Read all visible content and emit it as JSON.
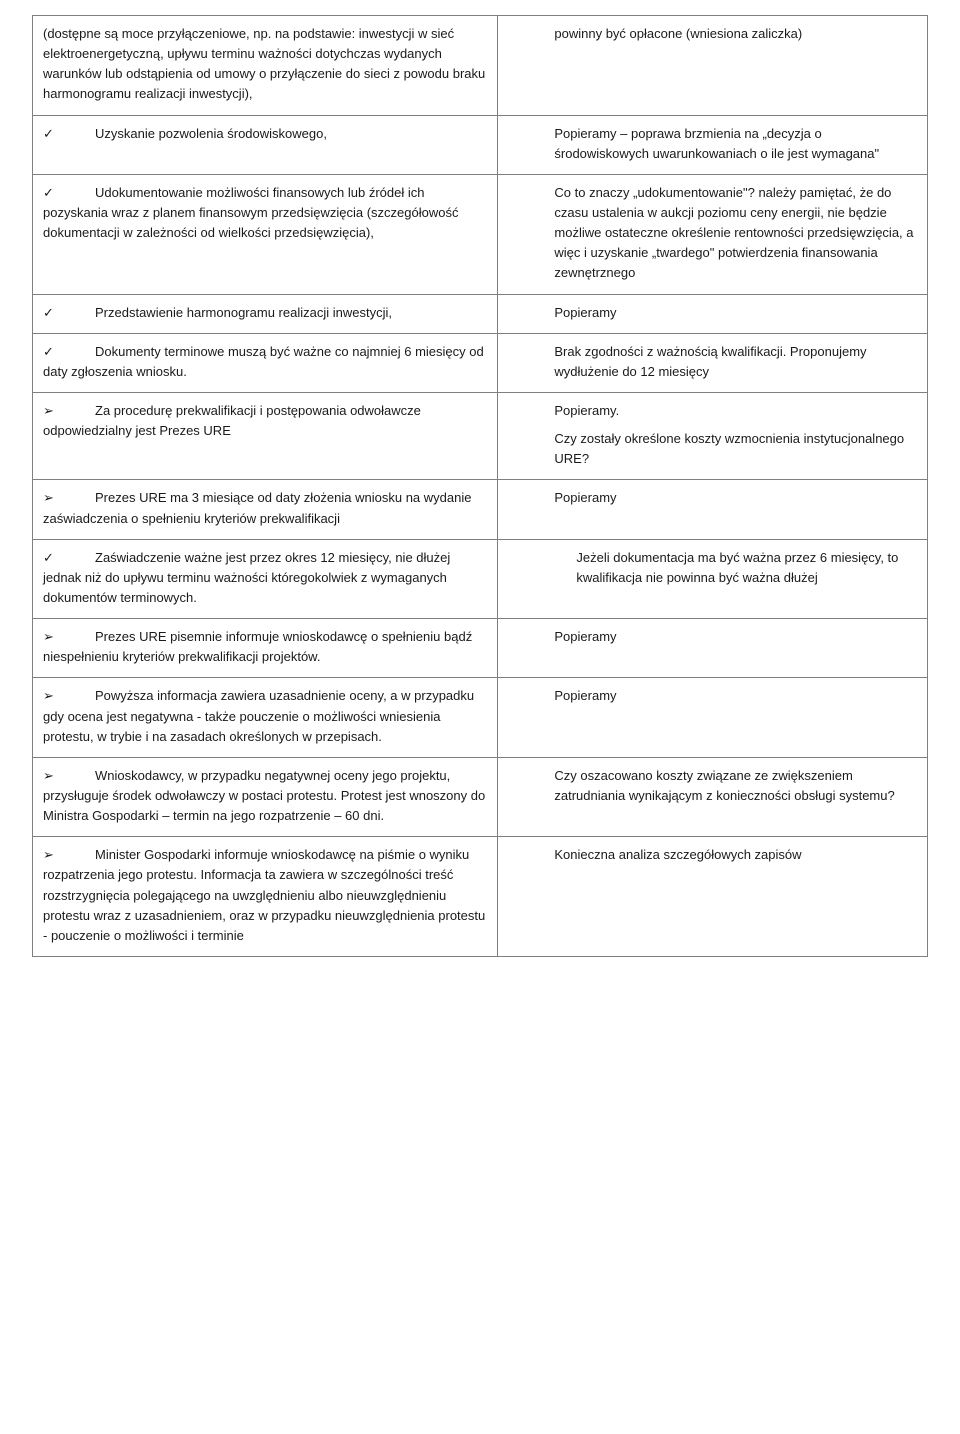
{
  "rows": [
    {
      "leftBullet": "",
      "leftText": "(dostępne są moce przyłączeniowe, np. na podstawie: inwestycji w sieć elektroenergetyczną, upływu terminu ważności dotychczas wydanych warunków lub odstąpienia od umowy o przyłączenie do sieci z powodu braku harmonogramu realizacji inwestycji),",
      "leftIndent": false,
      "rightText": "powinny być opłacone (wniesiona zaliczka)",
      "rightPad": "right-pad"
    },
    {
      "leftBullet": "✓",
      "leftText": "Uzyskanie pozwolenia środowiskowego,",
      "leftIndent": true,
      "rightText": "Popieramy – poprawa brzmienia na „decyzja o środowiskowych uwarunkowaniach o ile jest wymagana\"",
      "rightPad": "right-pad"
    },
    {
      "leftBullet": "✓",
      "leftText": "Udokumentowanie możliwości finansowych lub źródeł ich pozyskania wraz z planem finansowym przedsięwzięcia (szczegółowość dokumentacji w zależności od wielkości przedsięwzięcia),",
      "leftIndent": true,
      "rightText": "Co to znaczy „udokumentowanie\"? należy pamiętać, że do czasu ustalenia w aukcji poziomu ceny energii, nie będzie możliwe ostateczne określenie rentowności przedsięwzięcia, a więc i uzyskanie „twardego\" potwierdzenia finansowania zewnętrznego",
      "rightPad": "right-pad"
    },
    {
      "leftBullet": "✓",
      "leftText": "Przedstawienie harmonogramu realizacji inwestycji,",
      "leftIndent": true,
      "rightText": "Popieramy",
      "rightPad": "right-pad"
    },
    {
      "leftBullet": "✓",
      "leftText": "Dokumenty terminowe muszą być ważne co najmniej 6 miesięcy od daty zgłoszenia wniosku.",
      "leftIndent": true,
      "rightText": "Brak zgodności z ważnością kwalifikacji. Proponujemy wydłużenie do 12 miesięcy",
      "rightPad": "right-pad"
    },
    {
      "leftBullet": "➢",
      "leftText": "Za procedurę prekwalifikacji i postępowania odwoławcze odpowiedzialny jest Prezes URE",
      "leftIndent": true,
      "rightText": "Popieramy.",
      "rightText2": "Czy zostały określone koszty wzmocnienia instytucjonalnego URE?",
      "rightPad": "right-pad"
    },
    {
      "leftBullet": "➢",
      "leftText": "Prezes URE ma 3 miesiące od daty złożenia wniosku na wydanie zaświadczenia o spełnieniu kryteriów prekwalifikacji",
      "leftIndent": true,
      "rightText": "Popieramy",
      "rightPad": "right-pad"
    },
    {
      "leftBullet": "✓",
      "leftText": "Zaświadczenie ważne jest przez okres 12 miesięcy, nie dłużej jednak niż do upływu terminu ważności któregokolwiek z wymaganych dokumentów terminowych.",
      "leftIndent": true,
      "rightText": "Jeżeli dokumentacja ma być ważna przez 6 miesięcy, to kwalifikacja nie powinna być ważna dłużej",
      "rightPad": "right-pad-extra"
    },
    {
      "leftBullet": "➢",
      "leftText": "Prezes URE pisemnie informuje wnioskodawcę o spełnieniu bądź niespełnieniu kryteriów prekwalifikacji projektów.",
      "leftIndent": true,
      "rightText": "Popieramy",
      "rightPad": "right-pad"
    },
    {
      "leftBullet": "➢",
      "leftText": "Powyższa informacja zawiera uzasadnienie oceny, a w przypadku gdy ocena jest negatywna - także pouczenie o możliwości wniesienia protestu, w trybie i na zasadach określonych w przepisach.",
      "leftIndent": true,
      "rightText": "Popieramy",
      "rightPad": "right-pad"
    },
    {
      "leftBullet": "➢",
      "leftText": "Wnioskodawcy, w przypadku negatywnej oceny jego projektu, przysługuje środek odwoławczy w postaci protestu. Protest jest wnoszony do Ministra Gospodarki – termin na jego rozpatrzenie – 60 dni.",
      "leftIndent": true,
      "rightText": "Czy oszacowano koszty związane ze zwiększeniem zatrudniania wynikającym z konieczności obsługi systemu?",
      "rightPad": "right-pad"
    },
    {
      "leftBullet": "➢",
      "leftText": "Minister Gospodarki informuje wnioskodawcę na piśmie o wyniku rozpatrzenia jego protestu. Informacja ta zawiera w szczególności treść rozstrzygnięcia polegającego na uwzględnieniu albo nieuwzględnieniu protestu wraz z uzasadnieniem, oraz w przypadku nieuwzględnienia protestu - pouczenie o możliwości i terminie",
      "leftIndent": true,
      "rightText": "Konieczna analiza szczegółowych zapisów",
      "rightPad": "right-pad"
    }
  ]
}
